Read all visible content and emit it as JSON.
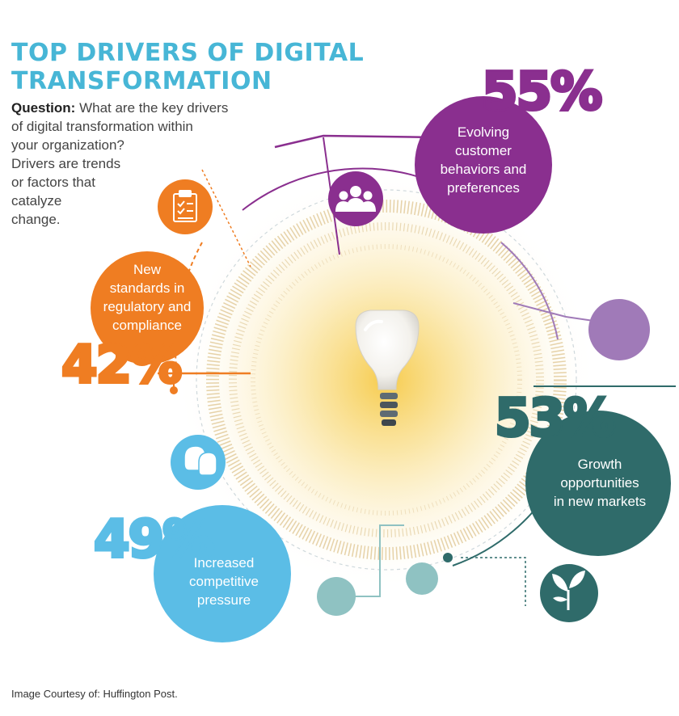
{
  "title": {
    "line1": "TOP DRIVERS OF DIGITAL",
    "line2": "TRANSFORMATION"
  },
  "question": {
    "label": "Question:",
    "line1": "What are the key drivers",
    "line2": "of digital transformation within",
    "line3": "your organization?",
    "line4": "Drivers are trends",
    "line5": "or factors that",
    "line6": "catalyze",
    "line7": "change."
  },
  "drivers": [
    {
      "percent": "55%",
      "lines": [
        "Evolving",
        "customer",
        "behaviors and",
        "preferences"
      ],
      "color": "#8a2f8f",
      "icon": "people-icon"
    },
    {
      "percent": "42%",
      "lines": [
        "New",
        "standards in",
        "regulatory and",
        "compliance"
      ],
      "color": "#ef7d22",
      "icon": "clipboard-checklist-icon"
    },
    {
      "percent": "53%",
      "lines": [
        "Growth",
        "opportunities",
        "in new markets"
      ],
      "color": "#2f6b6a",
      "icon": "plant-sprout-icon"
    },
    {
      "percent": "49%",
      "lines": [
        "Increased",
        "competitive",
        "pressure"
      ],
      "color": "#5bbde6",
      "icon": "boxing-gloves-icon"
    }
  ],
  "center_icon": "light-bulb-icon",
  "colors": {
    "title": "#47b6d6",
    "glow": "#f7d878",
    "lavender": "#a07ab8",
    "teal_light": "#8fc2c2"
  },
  "credit": "Image Courtesy of:  Huffington Post."
}
